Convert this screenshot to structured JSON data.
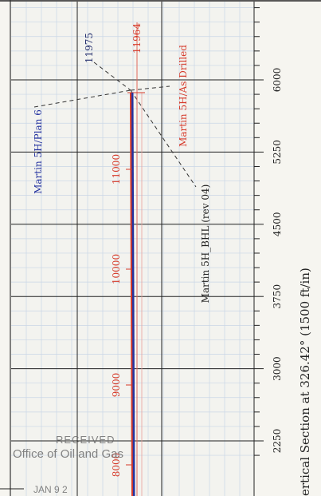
{
  "chart_data": {
    "type": "line",
    "orientation": "rotated-90",
    "axis_title": "ertical Section at 326.42° (1500 ft/in)",
    "axis": {
      "ticks": [
        2250,
        3000,
        3750,
        4500,
        5250,
        6000
      ],
      "tick_labels": [
        "2250",
        "3000",
        "3750",
        "4500",
        "5250",
        "6000"
      ],
      "range": [
        2175,
        6750
      ]
    },
    "grid": true,
    "depth_labels": [
      {
        "text": "8000",
        "color": "#d63a2a",
        "vs": 2250
      },
      {
        "text": "9000",
        "color": "#d63a2a",
        "vs": 2950
      },
      {
        "text": "10000",
        "color": "#d63a2a",
        "vs": 3950
      },
      {
        "text": "11000",
        "color": "#d63a2a",
        "vs": 5000
      },
      {
        "text": "11964",
        "color": "#d63a2a",
        "vs": 6450
      },
      {
        "text": "11975",
        "color": "#1f2a6a",
        "vs": 6330
      }
    ],
    "series": [
      {
        "name": "Martin 5H/Plan 6",
        "color": "#2433a0"
      },
      {
        "name": "Martin 5H/As Drilled",
        "color": "#d63a2a"
      },
      {
        "name": "Martin 5H_BHL (rev 04)",
        "color": "#222222"
      }
    ]
  },
  "stamp": {
    "line1": "RECEIVED",
    "line2": "Office of Oil and Gas",
    "line3": "JAN  9 2"
  }
}
